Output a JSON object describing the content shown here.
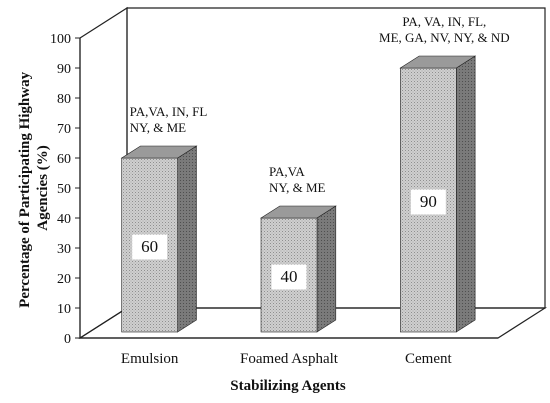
{
  "chart_data": {
    "type": "bar",
    "title": "",
    "xlabel": "Stabilizing Agents",
    "ylabel_lines": [
      "Percentage of Participating Highway",
      "Agencies (%)"
    ],
    "categories": [
      "Emulsion",
      "Foamed Asphalt",
      "Cement"
    ],
    "values": [
      60,
      40,
      90
    ],
    "value_labels": [
      "60",
      "40",
      "90"
    ],
    "annotations": [
      [
        "PA,VA, IN, FL",
        "NY, & ME"
      ],
      [
        "PA,VA",
        "NY, & ME"
      ],
      [
        "PA, VA, IN, FL,",
        "ME, GA, NV, NY, & ND"
      ]
    ],
    "ylim": [
      0,
      100
    ],
    "yticks": [
      0,
      10,
      20,
      30,
      40,
      50,
      60,
      70,
      80,
      90,
      100
    ],
    "grid": false,
    "legend": "none",
    "style": "3d-bars",
    "colors": {
      "bar_front": "#c4c4c4",
      "bar_side": "#7d7d7d",
      "bar_top": "#9a9a9a",
      "frame": "#222222"
    }
  }
}
